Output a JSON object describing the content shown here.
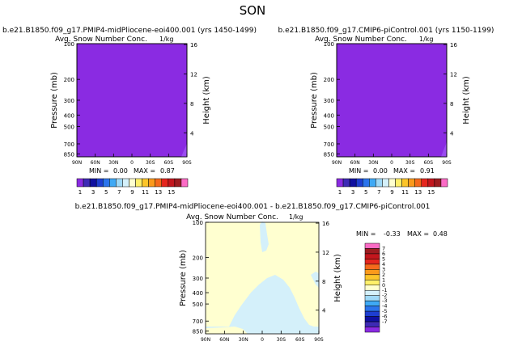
{
  "season": "SON",
  "chart_data": [
    {
      "type": "heatmap",
      "title": "b.e21.B1850.f09_g17.PMIP4-midPliocene-eoi400.001  (yrs 1450-1499)",
      "subtitle": "Avg. Snow Number Conc.",
      "units": "1/kg",
      "xlabel": "",
      "ylabel_left": "Pressure (mb)",
      "ylabel_right": "Height (km)",
      "x_ticks": [
        "90N",
        "60N",
        "30N",
        "0",
        "30S",
        "60S",
        "90S"
      ],
      "y_ticks": [
        "100",
        "200",
        "300",
        "400",
        "500",
        "700",
        "850"
      ],
      "height_ticks": [
        "4",
        "8",
        "12",
        "16"
      ],
      "field": "uniform value 1 nearly everywhere, slight increase near 90S surface",
      "min_label": "MIN = ",
      "min": "0.00",
      "max_label": "MAX = ",
      "max": "0.87",
      "colorbar_labels": [
        "1",
        "3",
        "5",
        "7",
        "9",
        "11",
        "13",
        "15"
      ]
    },
    {
      "type": "heatmap",
      "title": "b.e21.B1850.f09_g17.CMIP6-piControl.001  (yrs 1150-1199)",
      "subtitle": "Avg. Snow Number Conc.",
      "units": "1/kg",
      "xlabel": "",
      "ylabel_left": "Pressure (mb)",
      "ylabel_right": "Height (km)",
      "x_ticks": [
        "90N",
        "60N",
        "30N",
        "0",
        "30S",
        "60S",
        "90S"
      ],
      "y_ticks": [
        "100",
        "200",
        "300",
        "400",
        "500",
        "700",
        "850"
      ],
      "height_ticks": [
        "4",
        "8",
        "12",
        "16"
      ],
      "field": "uniform value 1 nearly everywhere, slight increase near 90S surface",
      "min_label": "MIN = ",
      "min": "0.00",
      "max_label": "MAX = ",
      "max": "0.91",
      "colorbar_labels": [
        "1",
        "3",
        "5",
        "7",
        "9",
        "11",
        "13",
        "15"
      ]
    },
    {
      "type": "heatmap",
      "title": "b.e21.B1850.f09_g17.PMIP4-midPliocene-eoi400.001  -  b.e21.B1850.f09_g17.CMIP6-piControl.001",
      "subtitle": "Avg. Snow Number Conc.",
      "units": "1/kg",
      "ylabel_left": "Pressure (mb)",
      "ylabel_right": "Height (km)",
      "x_ticks": [
        "90N",
        "60N",
        "30N",
        "0",
        "30S",
        "60S",
        "90S"
      ],
      "y_ticks": [
        "100",
        "200",
        "300",
        "400",
        "500",
        "700",
        "850"
      ],
      "height_ticks": [
        "4",
        "8",
        "12",
        "16"
      ],
      "field": "mostly 0; light-blue (-1) region in mid troposphere 40N-70S; light-yellow (+1) near 90S and surface",
      "min_label": "MIN = ",
      "min": "-0.33",
      "max_label": "MAX = ",
      "max": "0.48",
      "colorbar_labels": [
        "7",
        "6",
        "5",
        "4",
        "3",
        "2",
        "1",
        "0",
        "-1",
        "-2",
        "-3",
        "-4",
        "-5",
        "-6",
        "-7"
      ]
    }
  ],
  "colors": {
    "purple": "#8a2be2",
    "zero": "#ffffd0",
    "neg1": "#d4f0fa",
    "cbar_seq": [
      "#8a2be2",
      "#3d2ab5",
      "#1010a0",
      "#1e3ed1",
      "#2b74ec",
      "#3fa9f5",
      "#9fd9f7",
      "#d4f0fa",
      "#ffffd0",
      "#fff06a",
      "#fcc52a",
      "#fb9a1c",
      "#f56a1c",
      "#e5261f",
      "#c3161d",
      "#9d1c20",
      "#fb6bc5"
    ],
    "cbar_diff": [
      "#fb6bc5",
      "#9d1c20",
      "#c3161d",
      "#e5261f",
      "#f56a1c",
      "#fb9a1c",
      "#fcc52a",
      "#fff06a",
      "#ffffd0",
      "#d4f0fa",
      "#9fd9f7",
      "#3fa9f5",
      "#2b74ec",
      "#1e3ed1",
      "#1010a0",
      "#3d2ab5",
      "#8a2be2"
    ]
  }
}
